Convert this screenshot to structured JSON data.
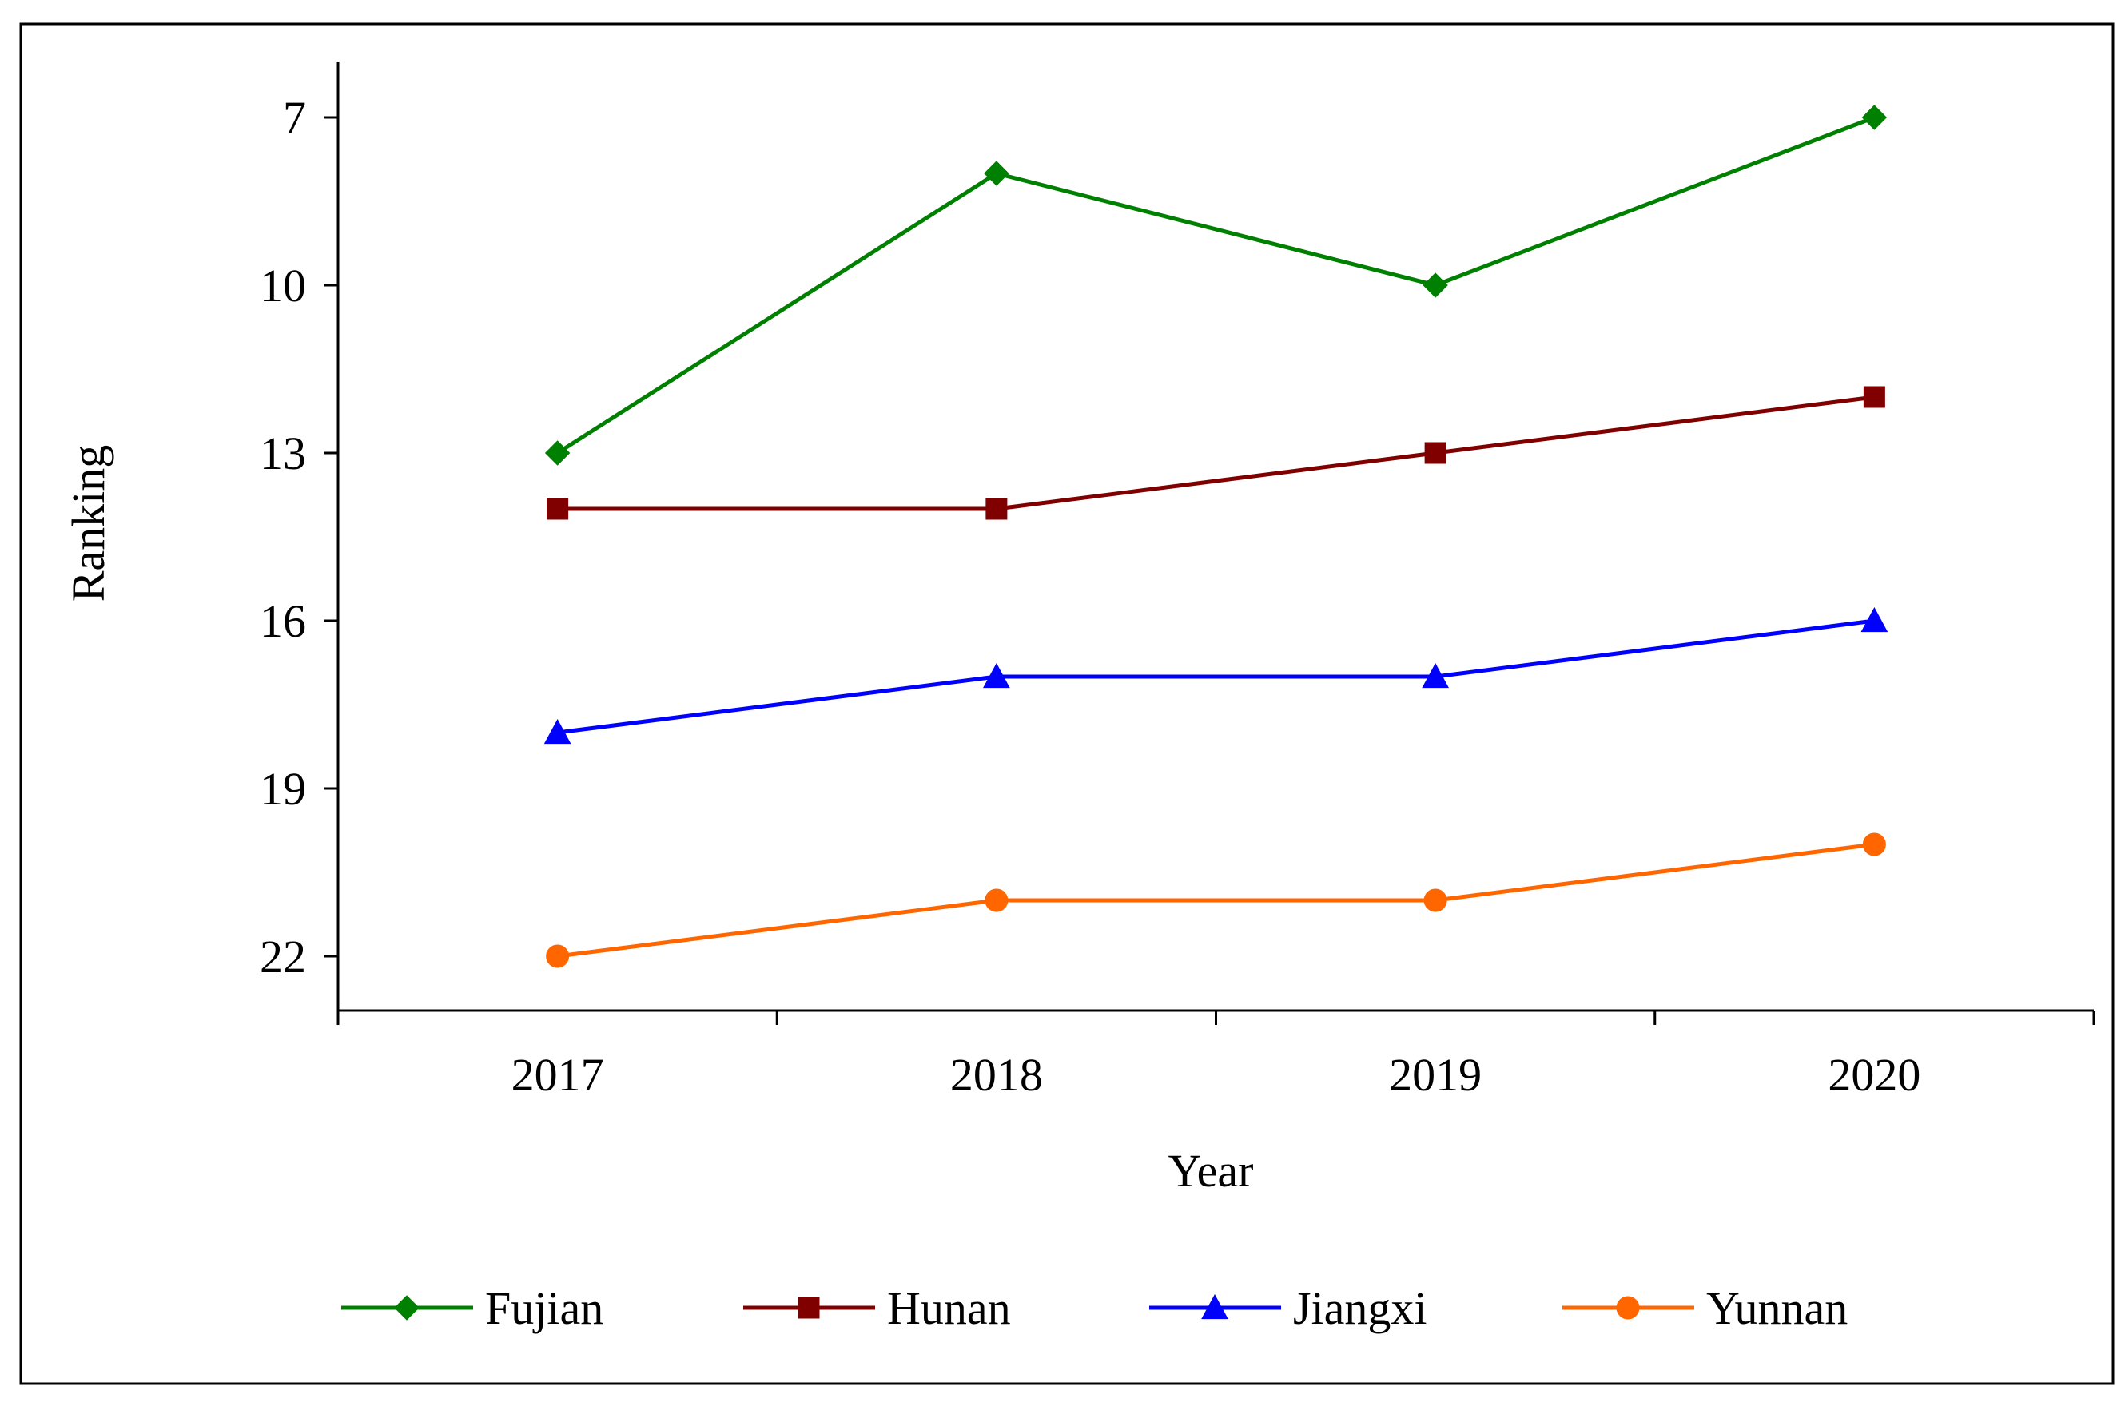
{
  "chart_data": {
    "type": "line",
    "title": "",
    "xlabel": "Year",
    "ylabel": "Ranking",
    "categories": [
      "2017",
      "2018",
      "2019",
      "2020"
    ],
    "y_ticks": [
      7,
      10,
      13,
      16,
      19,
      22
    ],
    "y_tick_labels": [
      "7",
      "10",
      "13",
      "16",
      "19",
      "22"
    ],
    "ylim": [
      6,
      23
    ],
    "y_inverted": true,
    "grid": false,
    "legend_position": "bottom",
    "series": [
      {
        "name": "Fujian",
        "values": [
          13,
          8,
          10,
          7
        ],
        "color": "#008000",
        "marker": "diamond"
      },
      {
        "name": "Hunan",
        "values": [
          14,
          14,
          13,
          12
        ],
        "color": "#800000",
        "marker": "square"
      },
      {
        "name": "Jiangxi",
        "values": [
          18,
          17,
          17,
          16
        ],
        "color": "#0000FF",
        "marker": "triangle"
      },
      {
        "name": "Yunnan",
        "values": [
          22,
          21,
          21,
          20
        ],
        "color": "#FF6600",
        "marker": "circle"
      }
    ]
  }
}
